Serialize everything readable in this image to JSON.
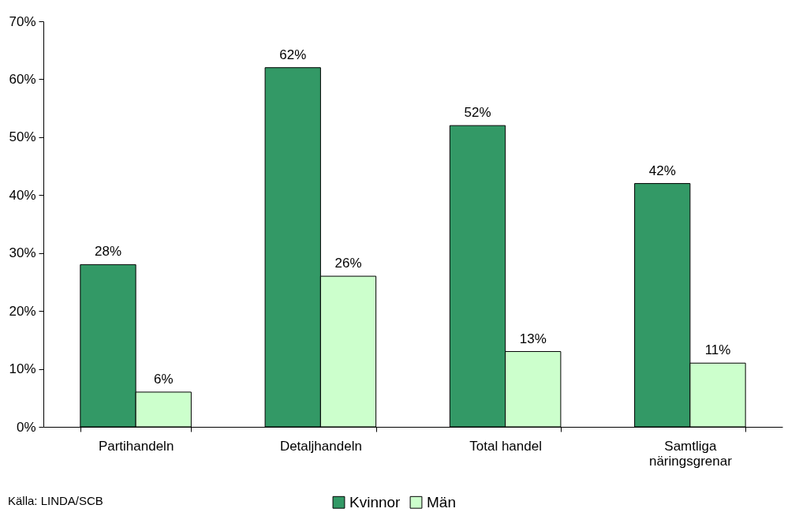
{
  "chart_data": {
    "type": "bar",
    "categories": [
      "Partihandeln",
      "Detaljhandeln",
      "Total handel",
      "Samtliga näringsgrenar"
    ],
    "series": [
      {
        "name": "Kvinnor",
        "color": "#339966",
        "values": [
          28,
          62,
          52,
          42
        ],
        "value_labels": [
          "28%",
          "62%",
          "52%",
          "42%"
        ]
      },
      {
        "name": "Män",
        "color": "#ccffcc",
        "values": [
          6,
          26,
          13,
          11
        ],
        "value_labels": [
          "6%",
          "26%",
          "13%",
          "11%"
        ]
      }
    ],
    "ylim": [
      0,
      70
    ],
    "yticks": [
      {
        "value": 0,
        "label": "0%"
      },
      {
        "value": 10,
        "label": "10%"
      },
      {
        "value": 20,
        "label": "20%"
      },
      {
        "value": 30,
        "label": "30%"
      },
      {
        "value": 40,
        "label": "40%"
      },
      {
        "value": 50,
        "label": "50%"
      },
      {
        "value": 60,
        "label": "60%"
      },
      {
        "value": 70,
        "label": "70%"
      }
    ],
    "grid": false,
    "legend": "bottom",
    "annotations": [
      "Källa: LINDA/SCB"
    ]
  }
}
